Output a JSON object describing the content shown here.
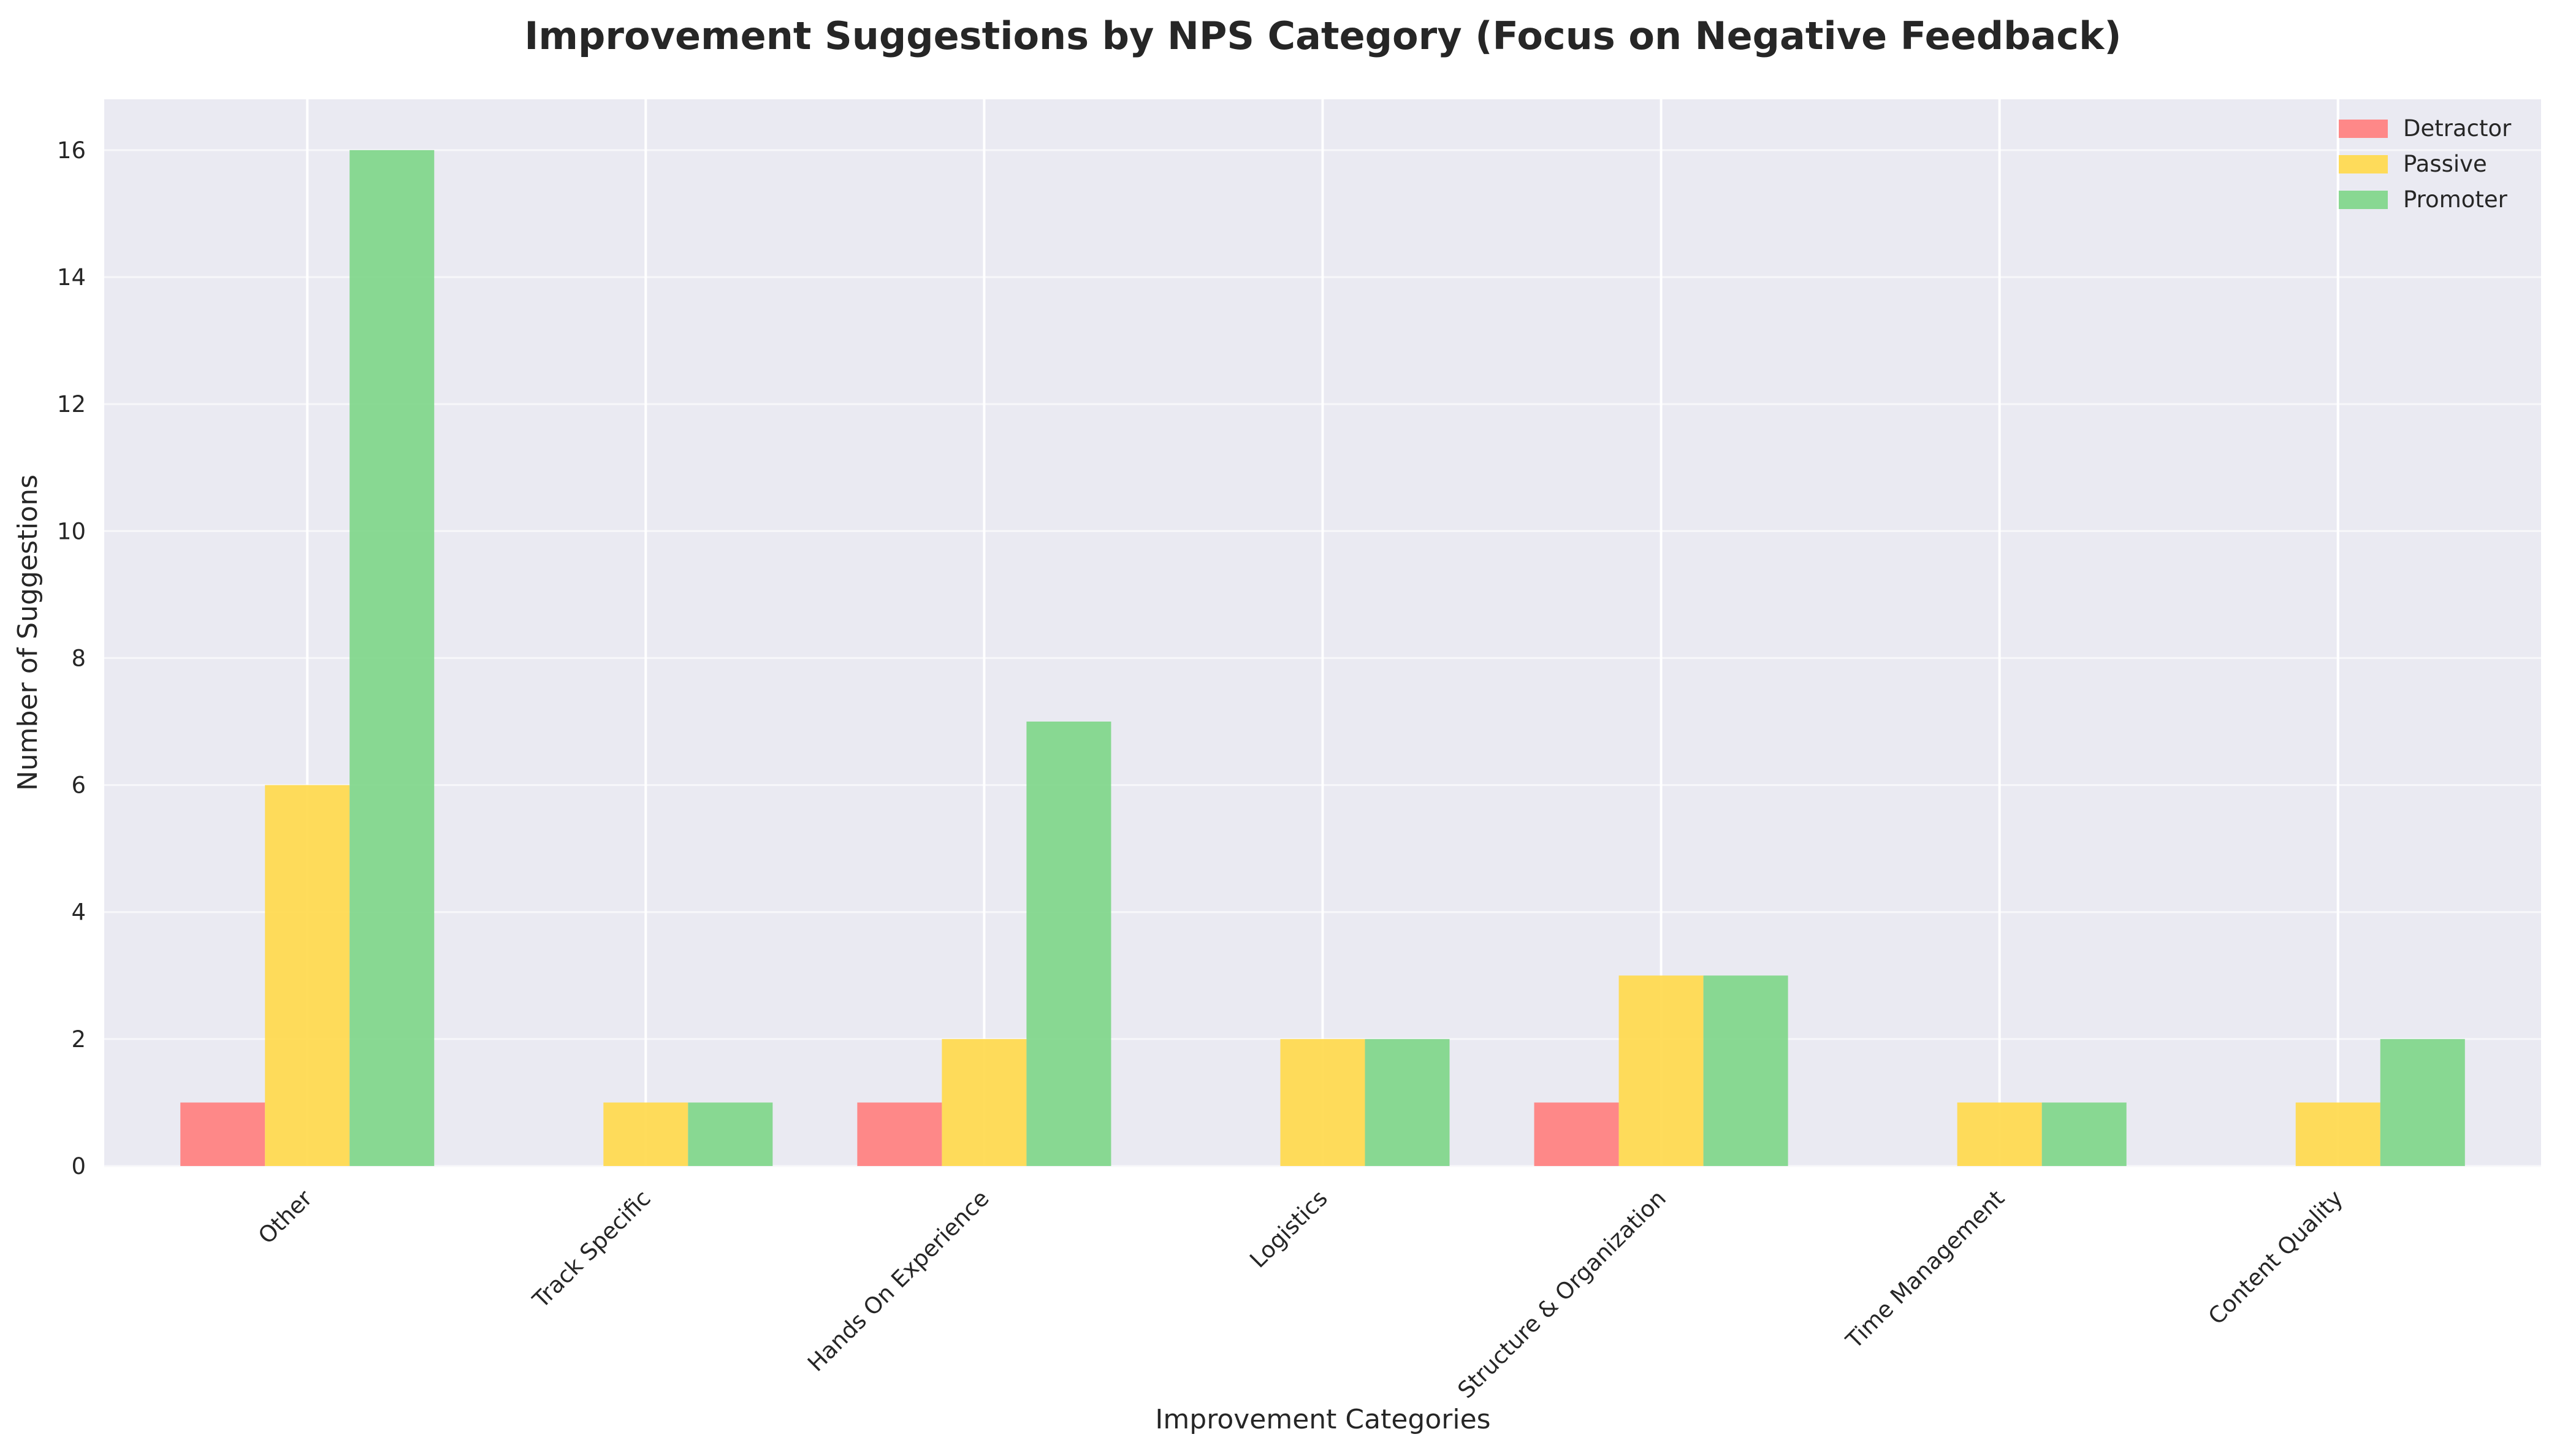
{
  "chart_data": {
    "type": "bar",
    "title": "Improvement Suggestions by NPS Category (Focus on Negative Feedback)",
    "xlabel": "Improvement Categories",
    "ylabel": "Number of Suggestions",
    "categories": [
      "Other",
      "Track Specific",
      "Hands On Experience",
      "Logistics",
      "Structure & Organization",
      "Time Management",
      "Content Quality"
    ],
    "series": [
      {
        "name": "Detractor",
        "color": "#ff7f7f",
        "values": [
          1,
          0,
          1,
          0,
          1,
          0,
          0
        ]
      },
      {
        "name": "Passive",
        "color": "#ffd94d",
        "values": [
          6,
          1,
          2,
          2,
          3,
          1,
          1
        ]
      },
      {
        "name": "Promoter",
        "color": "#7fd68a",
        "values": [
          16,
          1,
          7,
          2,
          3,
          1,
          2
        ]
      }
    ],
    "ylim": [
      0,
      16.8
    ],
    "yticks": [
      0,
      2,
      4,
      6,
      8,
      10,
      12,
      14,
      16
    ],
    "grid": true,
    "legend": "top-right",
    "background": "#eaeaf2"
  }
}
